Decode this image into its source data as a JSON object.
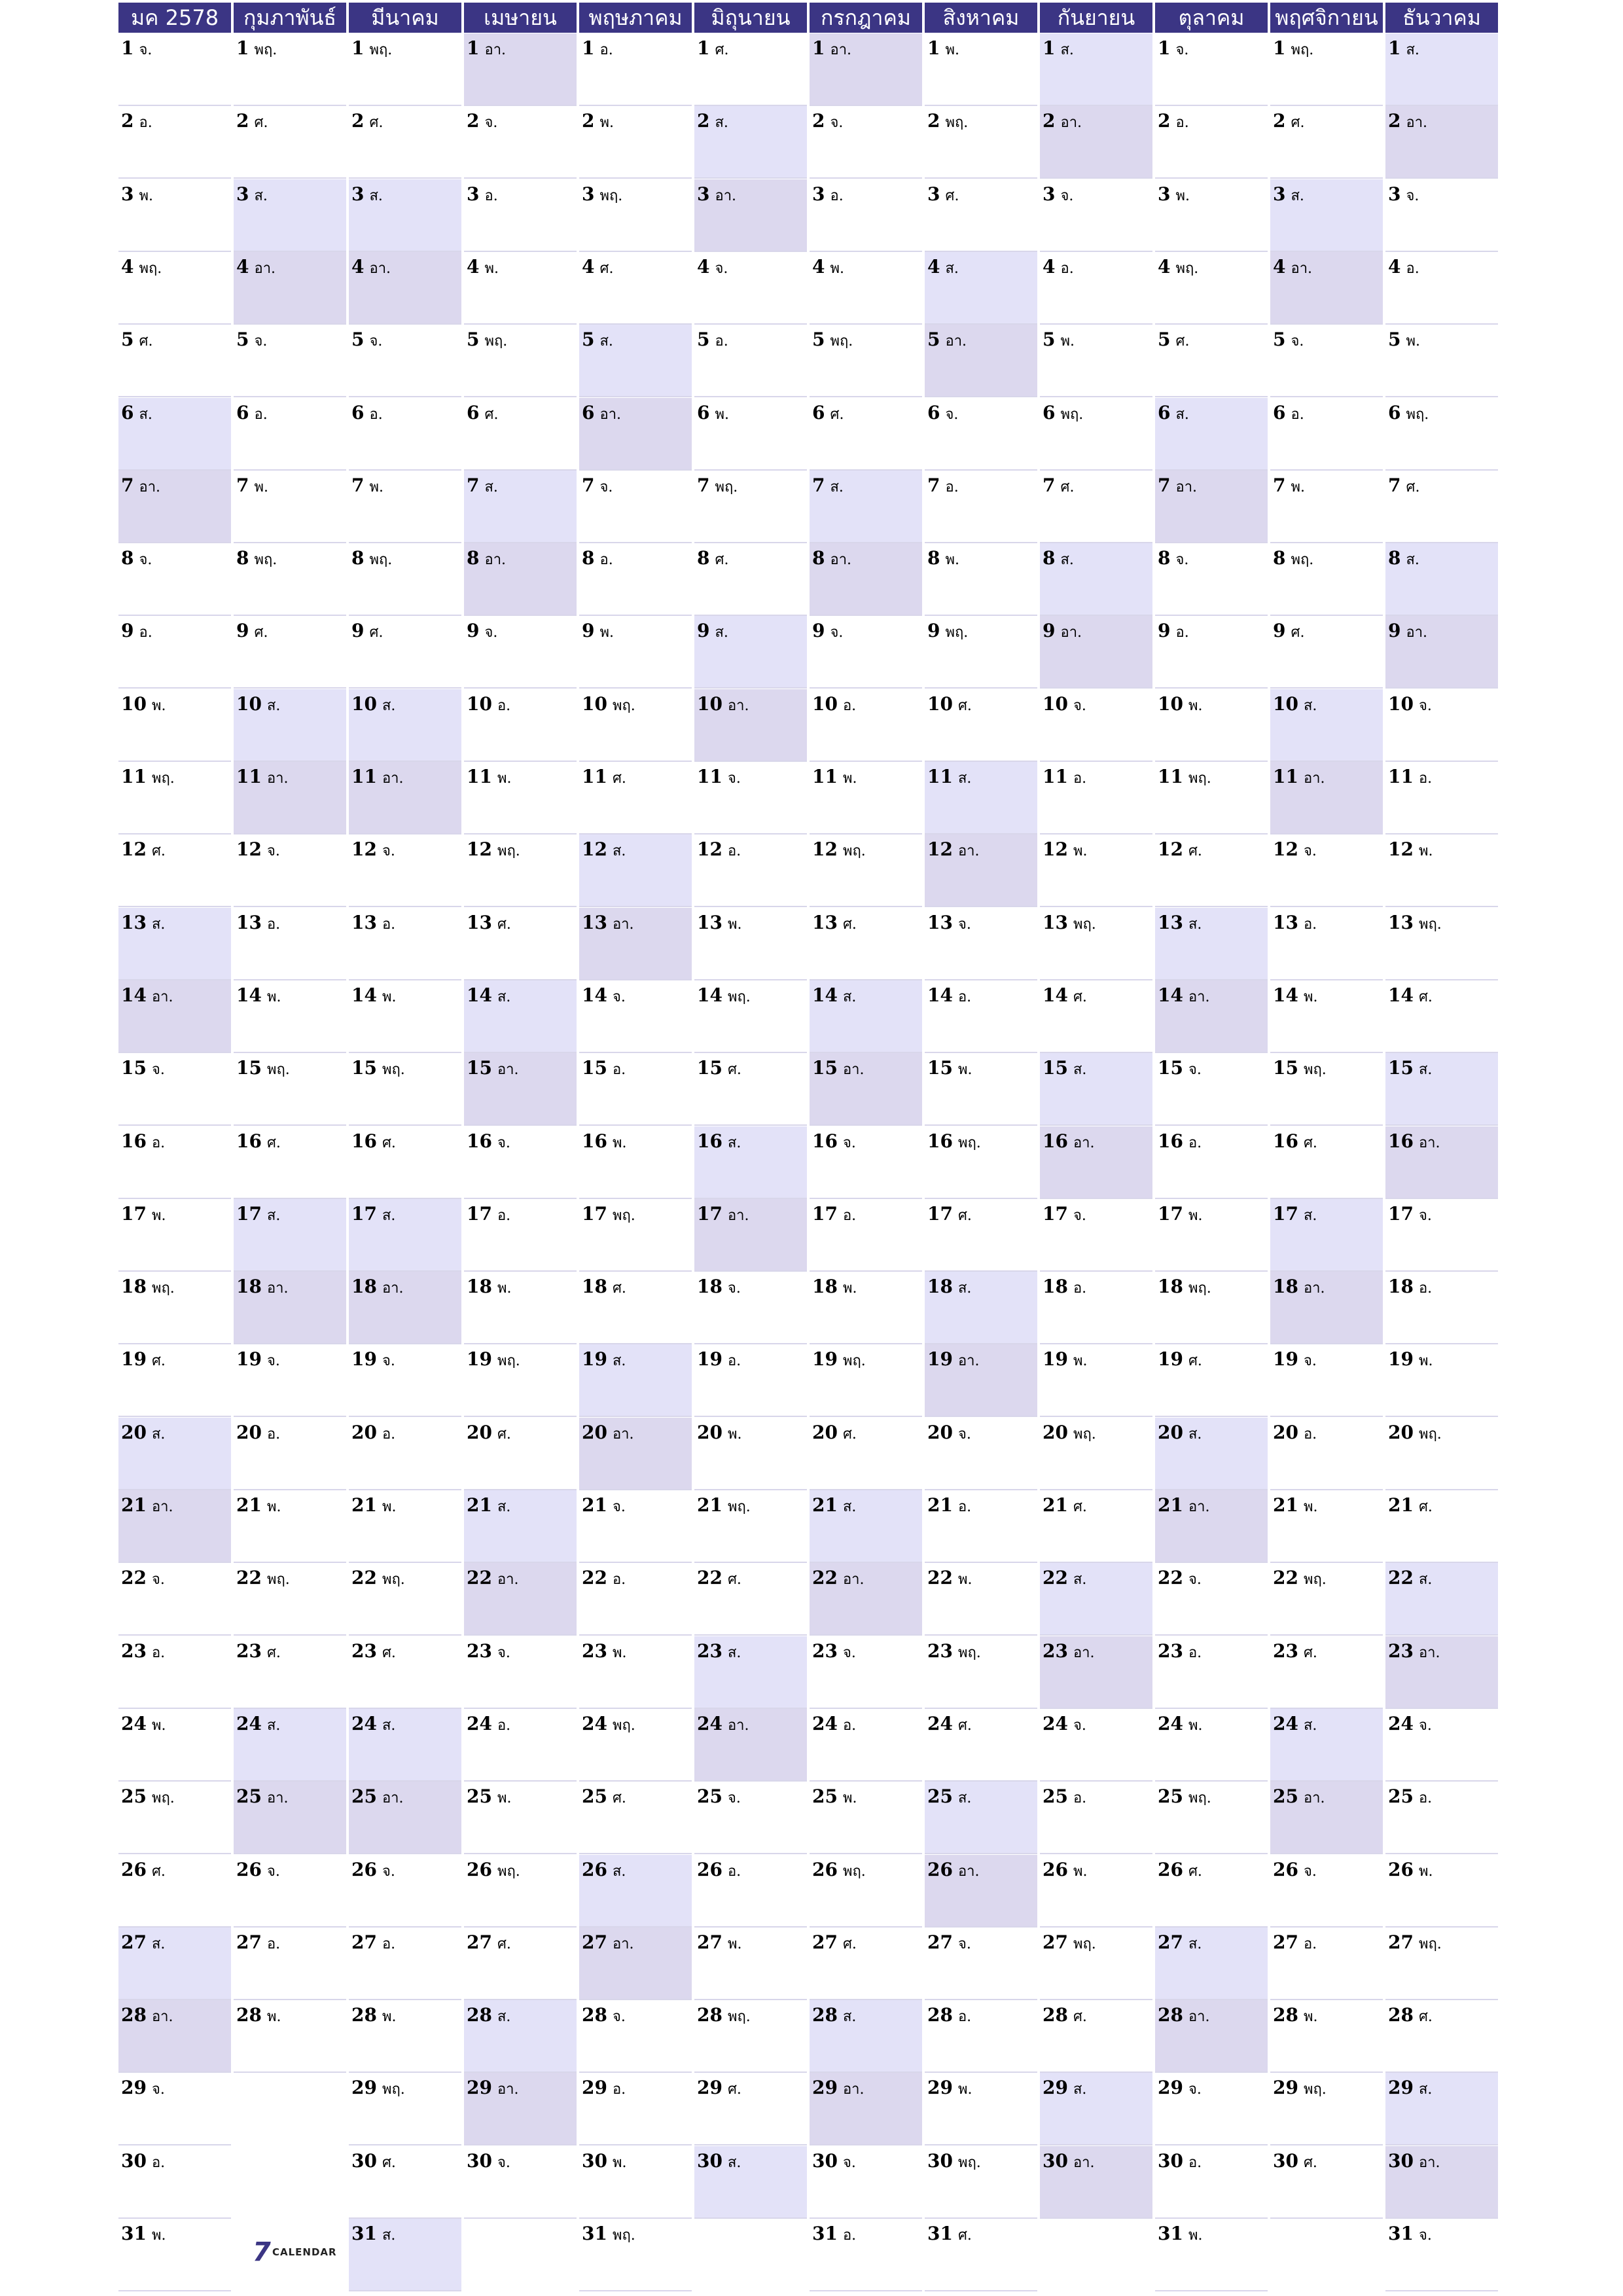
{
  "calendar": {
    "year_label": "มค 2578",
    "months": [
      {
        "name": "มค 2578",
        "days": 31,
        "first_weekday": 1
      },
      {
        "name": "กุมภาพันธ์",
        "days": 28,
        "first_weekday": 4
      },
      {
        "name": "มีนาคม",
        "days": 31,
        "first_weekday": 4
      },
      {
        "name": "เมษายน",
        "days": 30,
        "first_weekday": 0
      },
      {
        "name": "พฤษภาคม",
        "days": 31,
        "first_weekday": 2
      },
      {
        "name": "มิถุนายน",
        "days": 30,
        "first_weekday": 5
      },
      {
        "name": "กรกฎาคม",
        "days": 31,
        "first_weekday": 0
      },
      {
        "name": "สิงหาคม",
        "days": 31,
        "first_weekday": 3
      },
      {
        "name": "กันยายน",
        "days": 30,
        "first_weekday": 6
      },
      {
        "name": "ตุลาคม",
        "days": 31,
        "first_weekday": 1
      },
      {
        "name": "พฤศจิกายน",
        "days": 30,
        "first_weekday": 4
      },
      {
        "name": "ธันวาคม",
        "days": 31,
        "first_weekday": 6
      }
    ],
    "weekday_abbr": [
      "อา.",
      "จ.",
      "อ.",
      "พ.",
      "พฤ.",
      "ศ.",
      "ส."
    ]
  },
  "logo": {
    "mark": "7",
    "text": "CALENDAR"
  },
  "colors": {
    "header": "#3b3584",
    "saturday": "#e3e2f8",
    "sunday": "#dcd8ee",
    "row_line": "#d8d6ea"
  }
}
